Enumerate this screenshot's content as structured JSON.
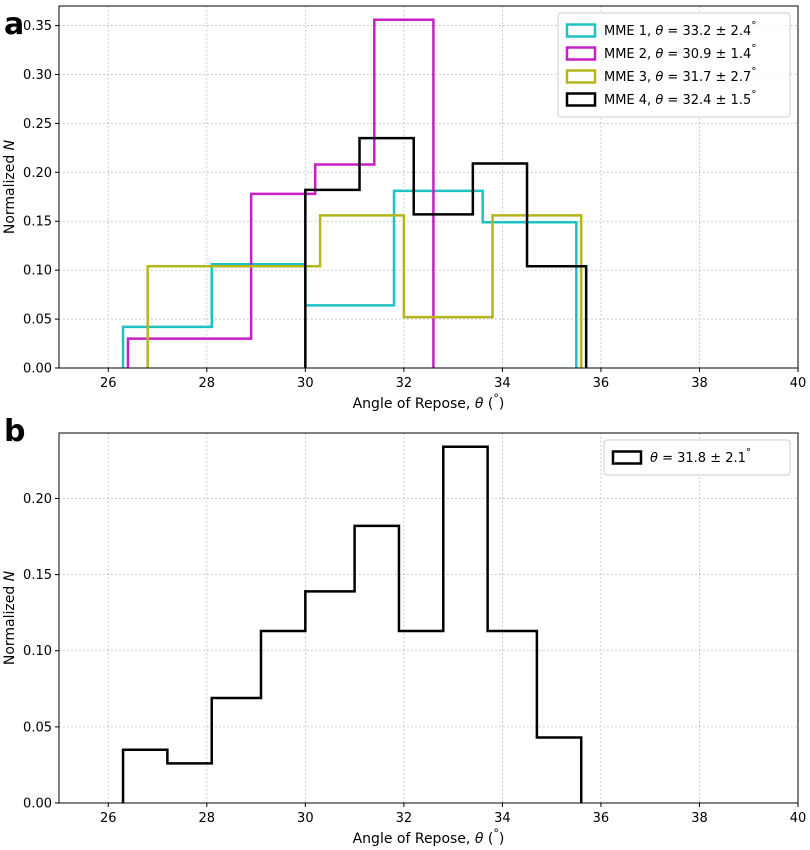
{
  "chart_data": [
    {
      "type": "step-histogram",
      "panel_label": "a",
      "xlabel": "Angle of Repose, θ (°)",
      "ylabel": "Normalized N",
      "xlim": [
        25,
        40
      ],
      "ylim": [
        0,
        0.37
      ],
      "xticks": [
        26,
        28,
        30,
        32,
        34,
        36,
        38,
        40
      ],
      "yticks": [
        0.0,
        0.05,
        0.1,
        0.15,
        0.2,
        0.25,
        0.3,
        0.35
      ],
      "xtick_labels": [
        "26",
        "28",
        "30",
        "32",
        "34",
        "36",
        "38",
        "40"
      ],
      "ytick_labels": [
        "0.00",
        "0.05",
        "0.10",
        "0.15",
        "0.20",
        "0.25",
        "0.30",
        "0.35"
      ],
      "grid": true,
      "legend_position": "top-right",
      "series": [
        {
          "name": "MME 1, θ = 33.2 ± 2.4°",
          "color": "#1fc2c2",
          "edges": [
            26.3,
            28.1,
            30.0,
            31.8,
            33.6,
            35.5
          ],
          "values": [
            0.042,
            0.106,
            0.064,
            0.181,
            0.149
          ]
        },
        {
          "name": "MME 2, θ = 30.9 ± 1.4°",
          "color": "#c81ec8",
          "edges": [
            26.4,
            28.9,
            30.2,
            31.4,
            32.6
          ],
          "values": [
            0.03,
            0.178,
            0.208,
            0.356
          ]
        },
        {
          "name": "MME 3, θ = 31.7 ± 2.7°",
          "color": "#b5b51c",
          "edges": [
            26.8,
            30.3,
            32.0,
            33.8,
            35.6
          ],
          "values": [
            0.104,
            0.156,
            0.052,
            0.156
          ]
        },
        {
          "name": "MME 4, θ = 32.4 ± 1.5°",
          "color": "#000000",
          "edges": [
            30.0,
            31.1,
            32.2,
            33.4,
            34.5,
            35.7
          ],
          "values": [
            0.182,
            0.235,
            0.157,
            0.209,
            0.104
          ]
        }
      ]
    },
    {
      "type": "step-histogram",
      "panel_label": "b",
      "xlabel": "Angle of Repose, θ (°)",
      "ylabel": "Normalized N",
      "xlim": [
        25,
        40
      ],
      "ylim": [
        0,
        0.243
      ],
      "xticks": [
        26,
        28,
        30,
        32,
        34,
        36,
        38,
        40
      ],
      "yticks": [
        0.0,
        0.05,
        0.1,
        0.15,
        0.2
      ],
      "xtick_labels": [
        "26",
        "28",
        "30",
        "32",
        "34",
        "36",
        "38",
        "40"
      ],
      "ytick_labels": [
        "0.00",
        "0.05",
        "0.10",
        "0.15",
        "0.20"
      ],
      "grid": true,
      "legend_position": "top-right",
      "series": [
        {
          "name": "θ = 31.8 ± 2.1°",
          "color": "#000000",
          "edges": [
            26.3,
            27.2,
            28.1,
            29.1,
            30.0,
            31.0,
            31.9,
            32.8,
            33.7,
            34.7,
            35.6
          ],
          "values": [
            0.035,
            0.026,
            0.069,
            0.113,
            0.139,
            0.182,
            0.113,
            0.234,
            0.113,
            0.043
          ]
        }
      ]
    }
  ]
}
